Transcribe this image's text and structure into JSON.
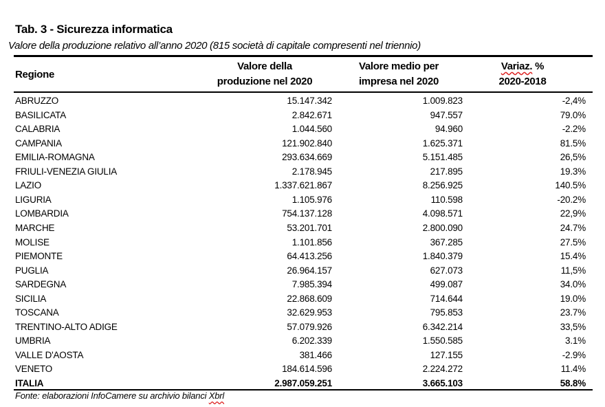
{
  "title": "Tab. 3 - Sicurezza informatica",
  "subtitle": "Valore della produzione relativo all’anno 2020 (815 società di capitale compresenti nel triennio)",
  "headers": {
    "regione": "Regione",
    "valore_l1": "Valore della",
    "valore_l2": "produzione nel 2020",
    "medio_l1": "Valore medio per",
    "medio_l2": "impresa nel 2020",
    "variaz_l1a": "Variaz.",
    "variaz_l1b": " %",
    "variaz_l2": "2020-2018"
  },
  "rows": [
    [
      "ABRUZZO",
      "15.147.342",
      "1.009.823",
      "-2,4%"
    ],
    [
      "BASILICATA",
      "2.842.671",
      "947.557",
      "79.0%"
    ],
    [
      "CALABRIA",
      "1.044.560",
      "94.960",
      "-2.2%"
    ],
    [
      "CAMPANIA",
      "121.902.840",
      "1.625.371",
      "81.5%"
    ],
    [
      "EMILIA-ROMAGNA",
      "293.634.669",
      "5.151.485",
      "26,5%"
    ],
    [
      "FRIULI-VENEZIA GIULIA",
      "2.178.945",
      "217.895",
      "19.3%"
    ],
    [
      "LAZIO",
      "1.337.621.867",
      "8.256.925",
      "140.5%"
    ],
    [
      "LIGURIA",
      "1.105.976",
      "110.598",
      "-20.2%"
    ],
    [
      "LOMBARDIA",
      "754.137.128",
      "4.098.571",
      "22,9%"
    ],
    [
      "MARCHE",
      "53.201.701",
      "2.800.090",
      "24.7%"
    ],
    [
      "MOLISE",
      "1.101.856",
      "367.285",
      "27.5%"
    ],
    [
      "PIEMONTE",
      "64.413.256",
      "1.840.379",
      "15.4%"
    ],
    [
      "PUGLIA",
      "26.964.157",
      "627.073",
      "11,5%"
    ],
    [
      "SARDEGNA",
      "7.985.394",
      "499.087",
      "34.0%"
    ],
    [
      "SICILIA",
      "22.868.609",
      "714.644",
      "19.0%"
    ],
    [
      "TOSCANA",
      "32.629.953",
      "795.853",
      "23.7%"
    ],
    [
      "TRENTINO-ALTO ADIGE",
      "57.079.926",
      "6.342.214",
      "33,5%"
    ],
    [
      "UMBRIA",
      "6.202.339",
      "1.550.585",
      "3.1%"
    ],
    [
      "VALLE D'AOSTA",
      "381.466",
      "127.155",
      "-2.9%"
    ],
    [
      "VENETO",
      "184.614.596",
      "2.224.272",
      "11.4%"
    ]
  ],
  "total": [
    "ITALIA",
    "2.987.059.251",
    "3.665.103",
    "58.8%"
  ],
  "footer_a": "Fonte: elaborazioni InfoCamere su archivio bilanci ",
  "footer_b": "Xbrl"
}
